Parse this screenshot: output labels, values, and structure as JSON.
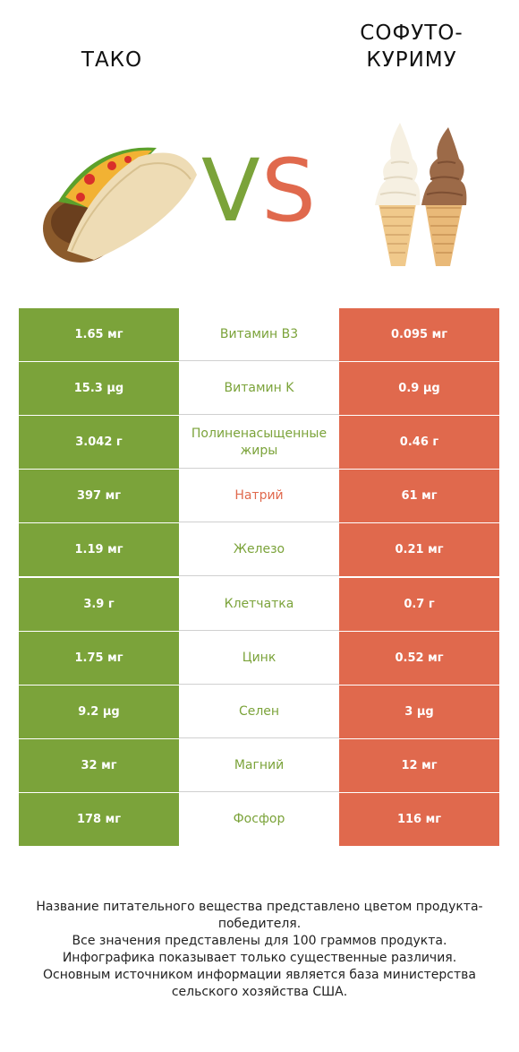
{
  "header": {
    "left_title": "ТАКО",
    "right_title": "СОФУТО-КУРИМУ",
    "vs_v": "V",
    "vs_s": "S"
  },
  "colors": {
    "left_winner": "#7ba33a",
    "right_winner": "#e0694d"
  },
  "rows": [
    {
      "left": "1.65 мг",
      "label": "Витамин B3",
      "right": "0.095 мг",
      "winner": "left"
    },
    {
      "left": "15.3 µg",
      "label": "Витамин K",
      "right": "0.9 µg",
      "winner": "left"
    },
    {
      "left": "3.042 г",
      "label": "Полиненасыщенные жиры",
      "right": "0.46 г",
      "winner": "left"
    },
    {
      "left": "397 мг",
      "label": "Натрий",
      "right": "61 мг",
      "winner": "right"
    },
    {
      "left": "1.19 мг",
      "label": "Железо",
      "right": "0.21 мг",
      "winner": "left"
    },
    {
      "left": "3.9 г",
      "label": "Клетчатка",
      "right": "0.7 г",
      "winner": "left"
    },
    {
      "left": "1.75 мг",
      "label": "Цинк",
      "right": "0.52 мг",
      "winner": "left"
    },
    {
      "left": "9.2 µg",
      "label": "Селен",
      "right": "3 µg",
      "winner": "left"
    },
    {
      "left": "32 мг",
      "label": "Магний",
      "right": "12 мг",
      "winner": "left"
    },
    {
      "left": "178 мг",
      "label": "Фосфор",
      "right": "116 мг",
      "winner": "left"
    }
  ],
  "footer": {
    "line1": "Название питательного вещества представлено цветом продукта-победителя.",
    "line2": "Все значения представлены для 100 граммов продукта.",
    "line3": "Инфографика показывает только существенные различия.",
    "line4": "Основным источником информации является база министерства сельского хозяйства США."
  }
}
